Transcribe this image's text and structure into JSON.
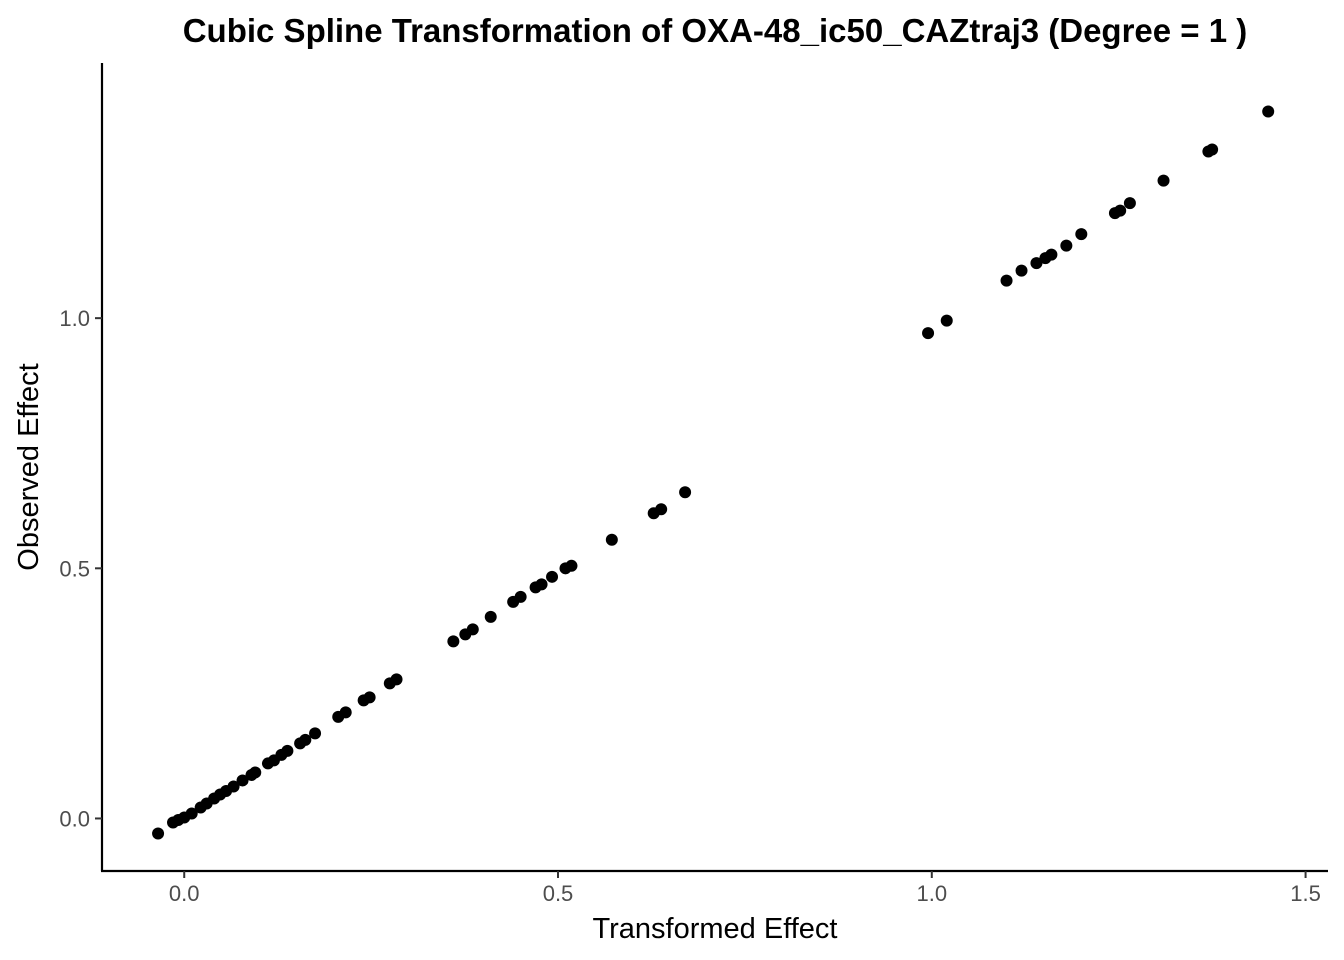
{
  "chart_data": {
    "type": "scatter",
    "title": "Cubic Spline Transformation of OXA-48_ic50_CAZtraj3 (Degree = 1 )",
    "xlabel": "Transformed Effect",
    "ylabel": "Observed Effect",
    "xlim": [
      -0.11,
      1.53
    ],
    "ylim": [
      -0.105,
      1.51
    ],
    "xticks": [
      0.0,
      0.5,
      1.0,
      1.5
    ],
    "xtick_labels": [
      "0.0",
      "0.5",
      "1.0",
      "1.5"
    ],
    "yticks": [
      0.0,
      0.5,
      1.0
    ],
    "ytick_labels": [
      "0.0",
      "0.5",
      "1.0"
    ],
    "grid": false,
    "legend": "none",
    "point_color": "#000000",
    "points": [
      [
        -0.035,
        -0.03
      ],
      [
        -0.015,
        -0.008
      ],
      [
        -0.008,
        -0.003
      ],
      [
        0.0,
        0.002
      ],
      [
        0.01,
        0.01
      ],
      [
        0.022,
        0.022
      ],
      [
        0.03,
        0.03
      ],
      [
        0.04,
        0.04
      ],
      [
        0.048,
        0.048
      ],
      [
        0.056,
        0.055
      ],
      [
        0.066,
        0.064
      ],
      [
        0.078,
        0.076
      ],
      [
        0.09,
        0.087
      ],
      [
        0.095,
        0.092
      ],
      [
        0.112,
        0.11
      ],
      [
        0.12,
        0.116
      ],
      [
        0.13,
        0.127
      ],
      [
        0.138,
        0.135
      ],
      [
        0.155,
        0.15
      ],
      [
        0.162,
        0.157
      ],
      [
        0.175,
        0.17
      ],
      [
        0.206,
        0.203
      ],
      [
        0.216,
        0.212
      ],
      [
        0.24,
        0.236
      ],
      [
        0.248,
        0.242
      ],
      [
        0.275,
        0.27
      ],
      [
        0.284,
        0.278
      ],
      [
        0.36,
        0.354
      ],
      [
        0.376,
        0.368
      ],
      [
        0.386,
        0.378
      ],
      [
        0.41,
        0.403
      ],
      [
        0.44,
        0.433
      ],
      [
        0.45,
        0.443
      ],
      [
        0.47,
        0.462
      ],
      [
        0.478,
        0.468
      ],
      [
        0.492,
        0.483
      ],
      [
        0.51,
        0.5
      ],
      [
        0.518,
        0.505
      ],
      [
        0.572,
        0.557
      ],
      [
        0.628,
        0.61
      ],
      [
        0.638,
        0.618
      ],
      [
        0.67,
        0.652
      ],
      [
        0.995,
        0.97
      ],
      [
        1.02,
        0.995
      ],
      [
        1.1,
        1.075
      ],
      [
        1.12,
        1.095
      ],
      [
        1.14,
        1.11
      ],
      [
        1.152,
        1.12
      ],
      [
        1.16,
        1.127
      ],
      [
        1.18,
        1.145
      ],
      [
        1.2,
        1.168
      ],
      [
        1.245,
        1.21
      ],
      [
        1.252,
        1.215
      ],
      [
        1.265,
        1.23
      ],
      [
        1.31,
        1.275
      ],
      [
        1.37,
        1.333
      ],
      [
        1.375,
        1.337
      ],
      [
        1.45,
        1.413
      ]
    ]
  }
}
